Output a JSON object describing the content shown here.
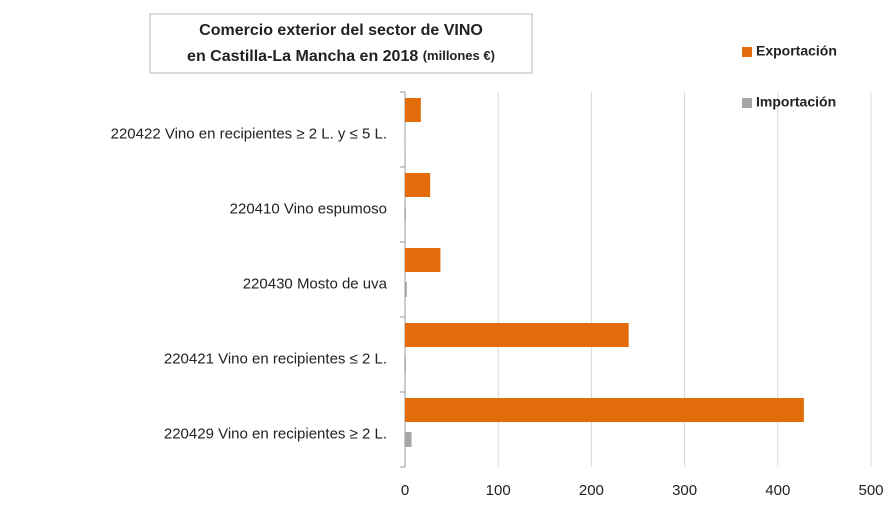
{
  "chart_data": {
    "type": "bar",
    "orientation": "horizontal",
    "title": [
      "Comercio exterior del sector de VINO",
      "en Castilla-La Mancha en 2018"
    ],
    "title_unit": "(millones €)",
    "categories": [
      "220422  Vino en recipientes ≥ 2 L.  y ≤ 5 L.",
      "220410 Vino espumoso",
      "220430 Mosto de uva",
      "220421  Vino en recipientes ≤ 2 L.",
      "220429  Vino en recipientes ≥ 2 L."
    ],
    "series": [
      {
        "name": "Exportación",
        "color": "#e36c0a",
        "values": [
          17,
          27,
          38,
          240,
          428
        ]
      },
      {
        "name": "Importación",
        "color": "#a6a6a6",
        "values": [
          0.5,
          1,
          2,
          1,
          7
        ]
      }
    ],
    "xlim": [
      0,
      500
    ],
    "xticks": [
      0,
      100,
      200,
      300,
      400,
      500
    ],
    "grid": true,
    "legend": "top-right"
  }
}
